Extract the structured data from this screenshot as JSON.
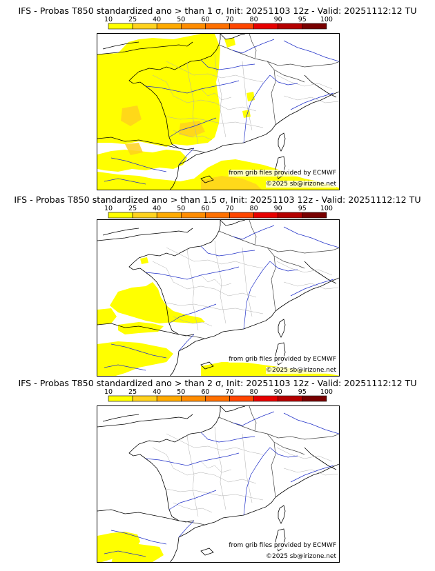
{
  "palette": {
    "levels": [
      "10",
      "25",
      "40",
      "50",
      "60",
      "70",
      "80",
      "90",
      "95",
      "100"
    ],
    "colors": [
      "#ffff00",
      "#ffd21e",
      "#ffaa00",
      "#ff8c00",
      "#ff7000",
      "#ff4600",
      "#e60000",
      "#b40000",
      "#780000"
    ]
  },
  "panels": [
    {
      "title": "IFS - Probas T850  standardized ano > than 1 σ, Init: 20251103 12z - Valid: 20251112:12 TU",
      "credit_source": "from grib files provided by ECMWF",
      "credit_copyright": "©2025 sb@irizone.net"
    },
    {
      "title": "IFS - Probas T850  standardized ano > than 1.5 σ, Init: 20251103 12z - Valid: 20251112:12 TU",
      "credit_source": "from grib files provided by ECMWF",
      "credit_copyright": "©2025 sb@irizone.net"
    },
    {
      "title": "IFS - Probas T850  standardized ano > than 2 σ, Init: 20251103 12z - Valid: 20251112:12 TU",
      "credit_source": "from grib files provided by ECMWF",
      "credit_copyright": "©2025 sb@irizone.net"
    }
  ]
}
